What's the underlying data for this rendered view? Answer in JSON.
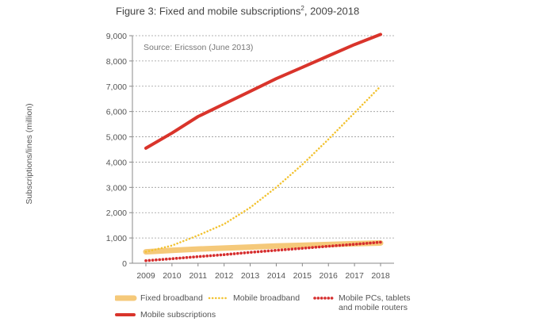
{
  "chart_data": {
    "type": "line",
    "title_main": "Figure 3: Fixed and mobile subscriptions",
    "title_sup": "2",
    "title_tail": ", 2009-2018",
    "source": "Source: Ericsson (June 2013)",
    "ylabel": "Subscriptions/lines (million)",
    "xlabel": "",
    "x": [
      "2009",
      "2010",
      "2011",
      "2012",
      "2013",
      "2014",
      "2015",
      "2016",
      "2017",
      "2018"
    ],
    "yticks": [
      "0",
      "1,000",
      "2,000",
      "3,000",
      "4,000",
      "5,000",
      "6,000",
      "7,000",
      "8,000",
      "9,000"
    ],
    "ylim": [
      0,
      9000
    ],
    "grid": "dotted horizontal",
    "legend_position": "bottom",
    "series": [
      {
        "name": "Fixed broadband",
        "style": "thick solid",
        "color": "#f5c97a",
        "values": [
          450,
          510,
          560,
          600,
          640,
          680,
          710,
          740,
          770,
          800
        ]
      },
      {
        "name": "Mobile broadband",
        "style": "dotted",
        "color": "#f2c230",
        "values": [
          450,
          700,
          1100,
          1550,
          2200,
          3000,
          3900,
          4900,
          5950,
          7000
        ]
      },
      {
        "name": "Mobile PCs, tablets\nand mobile routers",
        "style": "dotted heavy",
        "color": "#d62e2e",
        "values": [
          100,
          180,
          260,
          340,
          430,
          510,
          590,
          670,
          750,
          830
        ]
      },
      {
        "name": "Mobile subscriptions",
        "style": "thick solid",
        "color": "#d9342b",
        "values": [
          4550,
          5150,
          5800,
          6300,
          6800,
          7300,
          7750,
          8200,
          8650,
          9050
        ]
      }
    ]
  },
  "legend": {
    "fixed_broadband": "Fixed broadband",
    "mobile_broadband": "Mobile broadband",
    "mobile_pcs_line1": "Mobile PCs, tablets",
    "mobile_pcs_line2": "and mobile routers",
    "mobile_subscriptions": "Mobile subscriptions"
  }
}
